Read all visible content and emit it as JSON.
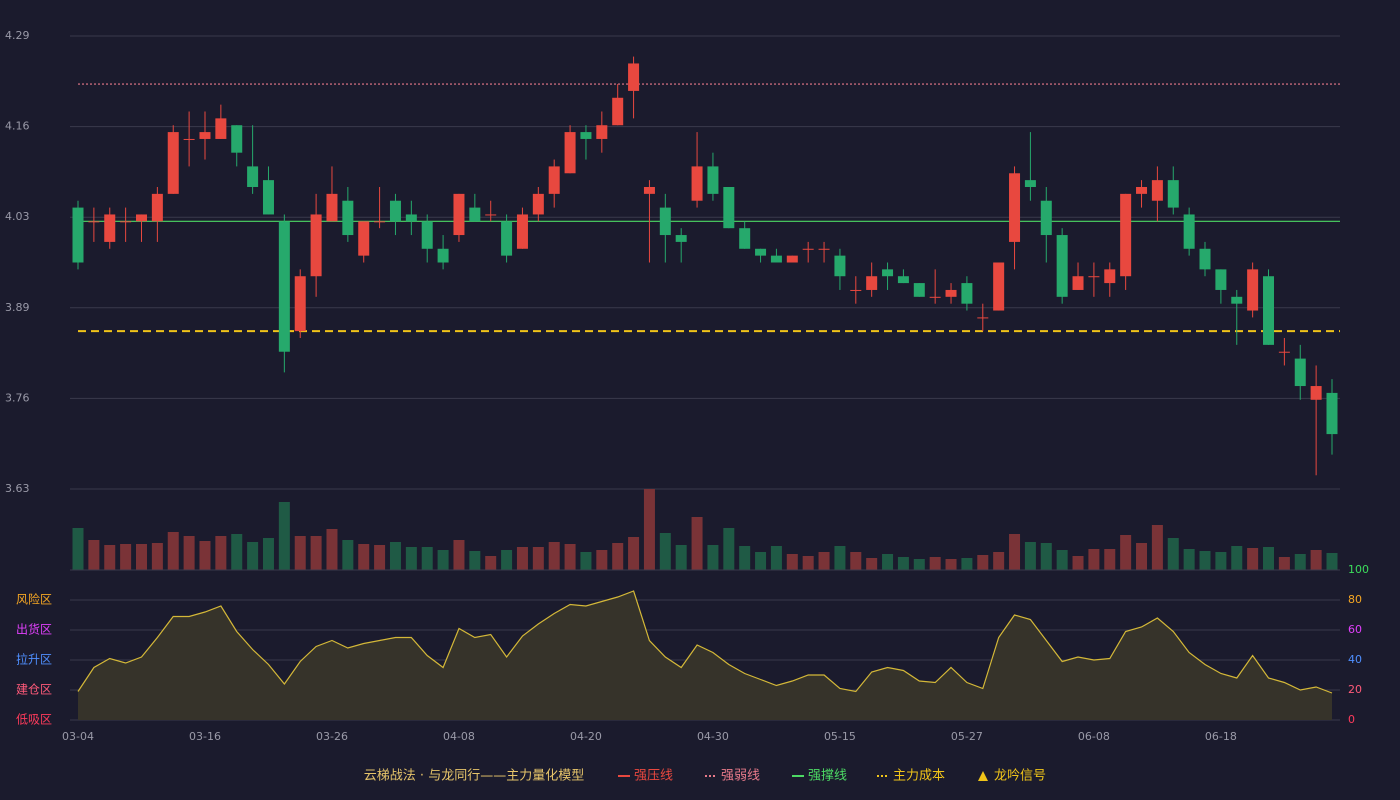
{
  "legend_title": "云梯战法 · 与龙同行——主力量化模型",
  "chart_data": [
    {
      "type": "candlestick",
      "categories": [
        "03-04",
        null,
        null,
        null,
        null,
        null,
        null,
        null,
        "03-16",
        null,
        null,
        null,
        null,
        null,
        null,
        null,
        "03-26",
        null,
        null,
        null,
        null,
        null,
        null,
        null,
        "04-08",
        null,
        null,
        null,
        null,
        null,
        null,
        null,
        "04-20",
        null,
        null,
        null,
        null,
        null,
        null,
        null,
        "04-30",
        null,
        null,
        null,
        null,
        null,
        null,
        null,
        "05-15",
        null,
        null,
        null,
        null,
        null,
        null,
        null,
        "05-27",
        null,
        null,
        null,
        null,
        null,
        null,
        null,
        "06-08",
        null,
        null,
        null,
        null,
        null,
        null,
        null,
        "06-18",
        null,
        null,
        null,
        null,
        null,
        null,
        null
      ],
      "open": [
        4.04,
        4.02,
        3.99,
        4.02,
        4.02,
        4.02,
        4.06,
        4.14,
        4.14,
        4.14,
        4.16,
        4.1,
        4.08,
        4.02,
        3.86,
        3.94,
        4.02,
        4.05,
        3.97,
        4.02,
        4.05,
        4.03,
        4.02,
        3.98,
        4.0,
        4.04,
        4.03,
        4.02,
        3.98,
        4.03,
        4.06,
        4.09,
        4.15,
        4.14,
        4.16,
        4.21,
        4.06,
        4.04,
        4.0,
        4.05,
        4.1,
        4.07,
        4.01,
        3.98,
        3.97,
        3.96,
        3.98,
        3.98,
        3.97,
        3.92,
        3.92,
        3.95,
        3.94,
        3.93,
        3.91,
        3.91,
        3.93,
        3.88,
        3.89,
        3.99,
        4.08,
        4.05,
        4.0,
        3.92,
        3.94,
        3.93,
        3.94,
        4.06,
        4.05,
        4.08,
        4.03,
        3.98,
        3.95,
        3.91,
        3.89,
        3.94,
        3.83,
        3.82,
        3.76,
        3.77
      ],
      "close": [
        3.96,
        4.02,
        4.03,
        4.02,
        4.03,
        4.06,
        4.15,
        4.14,
        4.15,
        4.17,
        4.12,
        4.07,
        4.03,
        3.83,
        3.94,
        4.03,
        4.06,
        4.0,
        4.02,
        4.02,
        4.02,
        4.02,
        3.98,
        3.96,
        4.06,
        4.02,
        4.03,
        3.97,
        4.03,
        4.06,
        4.1,
        4.15,
        4.14,
        4.16,
        4.2,
        4.25,
        4.07,
        4.0,
        3.99,
        4.1,
        4.06,
        4.01,
        3.98,
        3.97,
        3.96,
        3.97,
        3.98,
        3.98,
        3.94,
        3.92,
        3.94,
        3.94,
        3.93,
        3.91,
        3.91,
        3.92,
        3.9,
        3.88,
        3.96,
        4.09,
        4.07,
        4.0,
        3.91,
        3.94,
        3.94,
        3.95,
        4.06,
        4.07,
        4.08,
        4.04,
        3.98,
        3.95,
        3.92,
        3.9,
        3.95,
        3.84,
        3.83,
        3.78,
        3.78,
        3.71
      ],
      "high": [
        4.05,
        4.04,
        4.04,
        4.04,
        4.03,
        4.07,
        4.16,
        4.18,
        4.18,
        4.19,
        4.16,
        4.16,
        4.1,
        4.03,
        3.95,
        4.06,
        4.1,
        4.07,
        4.02,
        4.07,
        4.06,
        4.05,
        4.03,
        4.0,
        4.06,
        4.06,
        4.05,
        4.03,
        4.04,
        4.07,
        4.11,
        4.16,
        4.16,
        4.18,
        4.22,
        4.26,
        4.08,
        4.06,
        4.01,
        4.15,
        4.12,
        4.07,
        4.02,
        3.98,
        3.98,
        3.97,
        3.99,
        3.99,
        3.98,
        3.94,
        3.96,
        3.96,
        3.95,
        3.93,
        3.95,
        3.93,
        3.94,
        3.9,
        3.96,
        4.1,
        4.15,
        4.07,
        4.01,
        3.96,
        3.96,
        3.96,
        4.06,
        4.08,
        4.1,
        4.1,
        4.04,
        3.99,
        3.95,
        3.92,
        3.96,
        3.95,
        3.85,
        3.84,
        3.81,
        3.79
      ],
      "low": [
        3.95,
        3.99,
        3.98,
        3.99,
        3.99,
        3.99,
        4.06,
        4.1,
        4.11,
        4.14,
        4.1,
        4.06,
        4.03,
        3.8,
        3.85,
        3.91,
        4.02,
        3.99,
        3.96,
        4.01,
        4.0,
        4.0,
        3.96,
        3.95,
        3.99,
        4.02,
        4.02,
        3.96,
        3.98,
        4.02,
        4.04,
        4.09,
        4.11,
        4.12,
        4.16,
        4.17,
        3.96,
        3.96,
        3.96,
        4.04,
        4.05,
        4.01,
        3.98,
        3.96,
        3.96,
        3.96,
        3.96,
        3.96,
        3.92,
        3.9,
        3.91,
        3.92,
        3.93,
        3.91,
        3.9,
        3.9,
        3.89,
        3.86,
        3.89,
        3.95,
        4.05,
        3.96,
        3.9,
        3.92,
        3.91,
        3.91,
        3.92,
        4.04,
        4.02,
        4.03,
        3.97,
        3.94,
        3.9,
        3.84,
        3.88,
        3.84,
        3.81,
        3.76,
        3.65,
        3.68
      ],
      "up_color": "#e8483f",
      "down_color": "#26a96c",
      "ylim": [
        3.63,
        4.29
      ],
      "yticks": [
        3.63,
        {
          "value": 3.762,
          "label": "3.76"
        },
        {
          "value": 3.894,
          "label": "3.89"
        },
        {
          "value": 4.026,
          "label": "4.03"
        },
        {
          "value": 4.158,
          "label": "4.16"
        },
        4.29
      ],
      "grid": true,
      "lines": [
        {
          "name": "强压线",
          "color": "#e8483f",
          "style": "solid",
          "value": null
        },
        {
          "name": "强弱线",
          "color": "#e87a8a",
          "style": "dotted",
          "value": 4.22
        },
        {
          "name": "强撑线",
          "color": "#4cd964",
          "style": "solid",
          "value": 4.02
        },
        {
          "name": "主力成本",
          "color": "#f0c419",
          "style": "dashed",
          "value": 3.86
        }
      ],
      "signal": {
        "name": "龙吟信号",
        "color": "#f0c419"
      }
    },
    {
      "type": "bar",
      "values": [
        42,
        30,
        25,
        26,
        26,
        27,
        38,
        34,
        29,
        34,
        36,
        28,
        32,
        68,
        34,
        34,
        41,
        30,
        26,
        25,
        28,
        23,
        23,
        20,
        30,
        19,
        14,
        20,
        23,
        23,
        28,
        26,
        18,
        20,
        27,
        33,
        81,
        37,
        25,
        53,
        25,
        42,
        24,
        18,
        24,
        16,
        14,
        18,
        24,
        18,
        12,
        16,
        13,
        11,
        13,
        11,
        12,
        15,
        18,
        36,
        28,
        27,
        20,
        14,
        21,
        21,
        35,
        27,
        45,
        32,
        21,
        19,
        18,
        24,
        22,
        23,
        13,
        16,
        20,
        17
      ],
      "up_color": "#7a3337",
      "down_color": "#1f5a45"
    },
    {
      "type": "line",
      "values": [
        19,
        35,
        41,
        38,
        42,
        55,
        69,
        69,
        72,
        76,
        59,
        47,
        37,
        24,
        39,
        49,
        53,
        48,
        51,
        53,
        55,
        55,
        43,
        35,
        61,
        55,
        57,
        42,
        56,
        64,
        71,
        77,
        76,
        79,
        82,
        86,
        53,
        42,
        35,
        50,
        45,
        37,
        31,
        27,
        23,
        26,
        30,
        30,
        21,
        19,
        32,
        35,
        33,
        26,
        25,
        35,
        25,
        21,
        55,
        70,
        67,
        53,
        39,
        42,
        40,
        41,
        59,
        62,
        68,
        59,
        45,
        37,
        31,
        28,
        43,
        28,
        25,
        20,
        22,
        18
      ],
      "color": "#d4b838",
      "fill": "#36332a",
      "ylim": [
        0,
        100
      ],
      "yticks": [
        0,
        20,
        40,
        60,
        80,
        100
      ],
      "ytick_colors": [
        "#ff3b5c",
        "#ff5a7a",
        "#4f8fff",
        "#e040fb",
        "#f5a623",
        "#3cdc5c"
      ],
      "zones": [
        {
          "label": "低吸区",
          "value": 0,
          "color": "#ff3b5c"
        },
        {
          "label": "建仓区",
          "value": 20,
          "color": "#ff5a7a"
        },
        {
          "label": "拉升区",
          "value": 40,
          "color": "#4f8fff"
        },
        {
          "label": "出货区",
          "value": 60,
          "color": "#e040fb"
        },
        {
          "label": "风险区",
          "value": 80,
          "color": "#f5a623"
        }
      ]
    }
  ]
}
